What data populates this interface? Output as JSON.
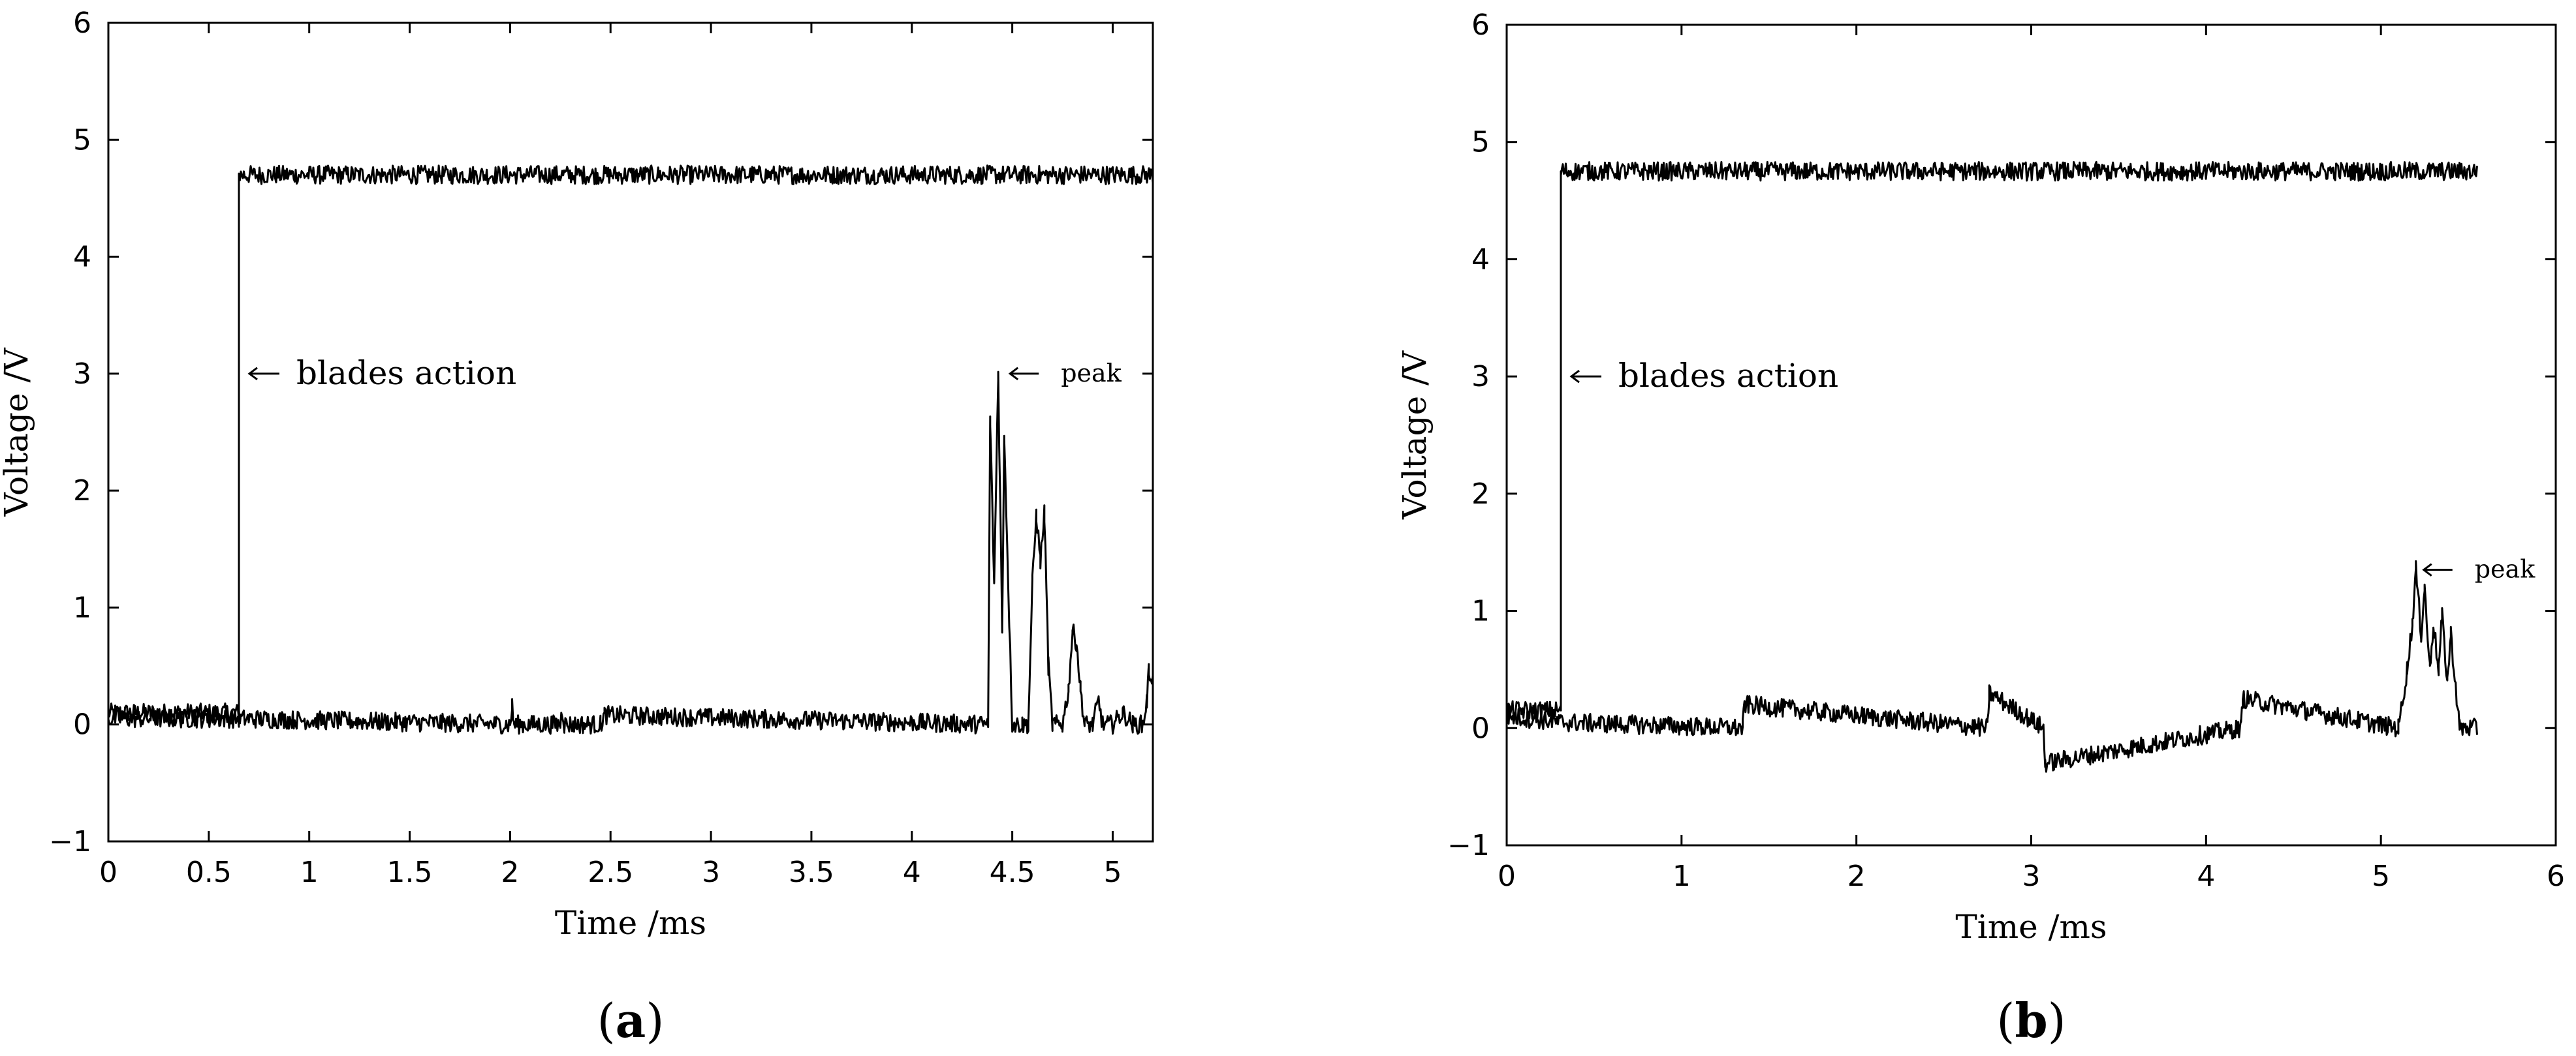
{
  "chart_data": [
    {
      "panel": "a",
      "type": "line",
      "title": "",
      "xlabel": "Time /ms",
      "ylabel": "Voltage /V",
      "xlim": [
        0,
        5.2
      ],
      "ylim": [
        -1,
        6
      ],
      "xticks": [
        0,
        0.5,
        1,
        1.5,
        2,
        2.5,
        3,
        3.5,
        4,
        4.5,
        5
      ],
      "yticks": [
        -1,
        0,
        1,
        2,
        3,
        4,
        5,
        6
      ],
      "grid": false,
      "series": [
        {
          "role": "trigger",
          "x": [
            0,
            0.65,
            0.65,
            5.2
          ],
          "y": [
            0.1,
            0.1,
            4.7,
            4.7
          ]
        },
        {
          "role": "signal",
          "x": [
            0,
            0.65,
            2.0,
            2.01,
            2.02,
            2.25,
            2.26,
            2.27,
            2.45,
            2.47,
            4.38,
            4.39,
            4.41,
            4.43,
            4.45,
            4.46,
            4.48,
            4.5,
            4.55,
            4.58,
            4.6,
            4.62,
            4.64,
            4.66,
            4.68,
            4.7,
            4.75,
            4.78,
            4.8,
            4.82,
            4.84,
            4.86,
            4.9,
            4.93,
            4.95,
            5.0,
            5.05,
            5.1,
            5.15,
            5.17,
            5.18,
            5.2
          ],
          "y": [
            0.05,
            0.05,
            0.0,
            0.15,
            0.0,
            0.0,
            0.12,
            0.0,
            0.0,
            0.08,
            0.0,
            2.6,
            1.2,
            3.0,
            0.8,
            2.5,
            1.2,
            0.0,
            0.0,
            0.0,
            1.2,
            1.8,
            1.4,
            1.8,
            0.5,
            0.0,
            0.0,
            0.3,
            0.8,
            0.7,
            0.3,
            0.0,
            0.0,
            0.2,
            0.0,
            0.0,
            0.1,
            0.0,
            0.0,
            0.2,
            0.45,
            0.4
          ]
        }
      ],
      "annotations": [
        {
          "text": "blades action",
          "x": 0.65,
          "y": 3.0
        },
        {
          "text": "peak",
          "x": 4.45,
          "y": 3.0
        }
      ]
    },
    {
      "panel": "b",
      "type": "line",
      "title": "",
      "xlabel": "Time /ms",
      "ylabel": "Voltage /V",
      "xlim": [
        0,
        6
      ],
      "ylim": [
        -1,
        6
      ],
      "xticks": [
        0,
        1,
        2,
        3,
        4,
        5,
        6
      ],
      "yticks": [
        -1,
        0,
        1,
        2,
        3,
        4,
        5,
        6
      ],
      "grid": false,
      "series": [
        {
          "role": "trigger",
          "x": [
            0,
            0.31,
            0.31,
            5.55
          ],
          "y": [
            0.15,
            0.15,
            4.75,
            4.75
          ]
        },
        {
          "role": "signal",
          "x": [
            0,
            0.31,
            1.35,
            1.36,
            2.75,
            2.76,
            3.07,
            3.08,
            4.2,
            4.21,
            5.1,
            5.15,
            5.18,
            5.2,
            5.23,
            5.25,
            5.28,
            5.3,
            5.33,
            5.35,
            5.38,
            5.4,
            5.45,
            5.5,
            5.55
          ],
          "y": [
            0.1,
            0.05,
            0.0,
            0.2,
            0.0,
            0.3,
            0.0,
            -0.3,
            0.0,
            0.25,
            0.0,
            0.5,
            0.9,
            1.35,
            0.8,
            1.2,
            0.5,
            0.9,
            0.5,
            0.95,
            0.4,
            0.8,
            0.0,
            0.0,
            0.0
          ]
        }
      ],
      "annotations": [
        {
          "text": "blades action",
          "x": 0.31,
          "y": 3.0
        },
        {
          "text": "peak",
          "x": 5.2,
          "y": 1.35
        }
      ]
    }
  ],
  "panels": [
    {
      "label_open": "(",
      "label_letter": "a",
      "label_close": ")"
    },
    {
      "label_open": "(",
      "label_letter": "b",
      "label_close": ")"
    }
  ],
  "colors": {
    "line": "#000000",
    "axis": "#000000",
    "background": "#ffffff"
  }
}
